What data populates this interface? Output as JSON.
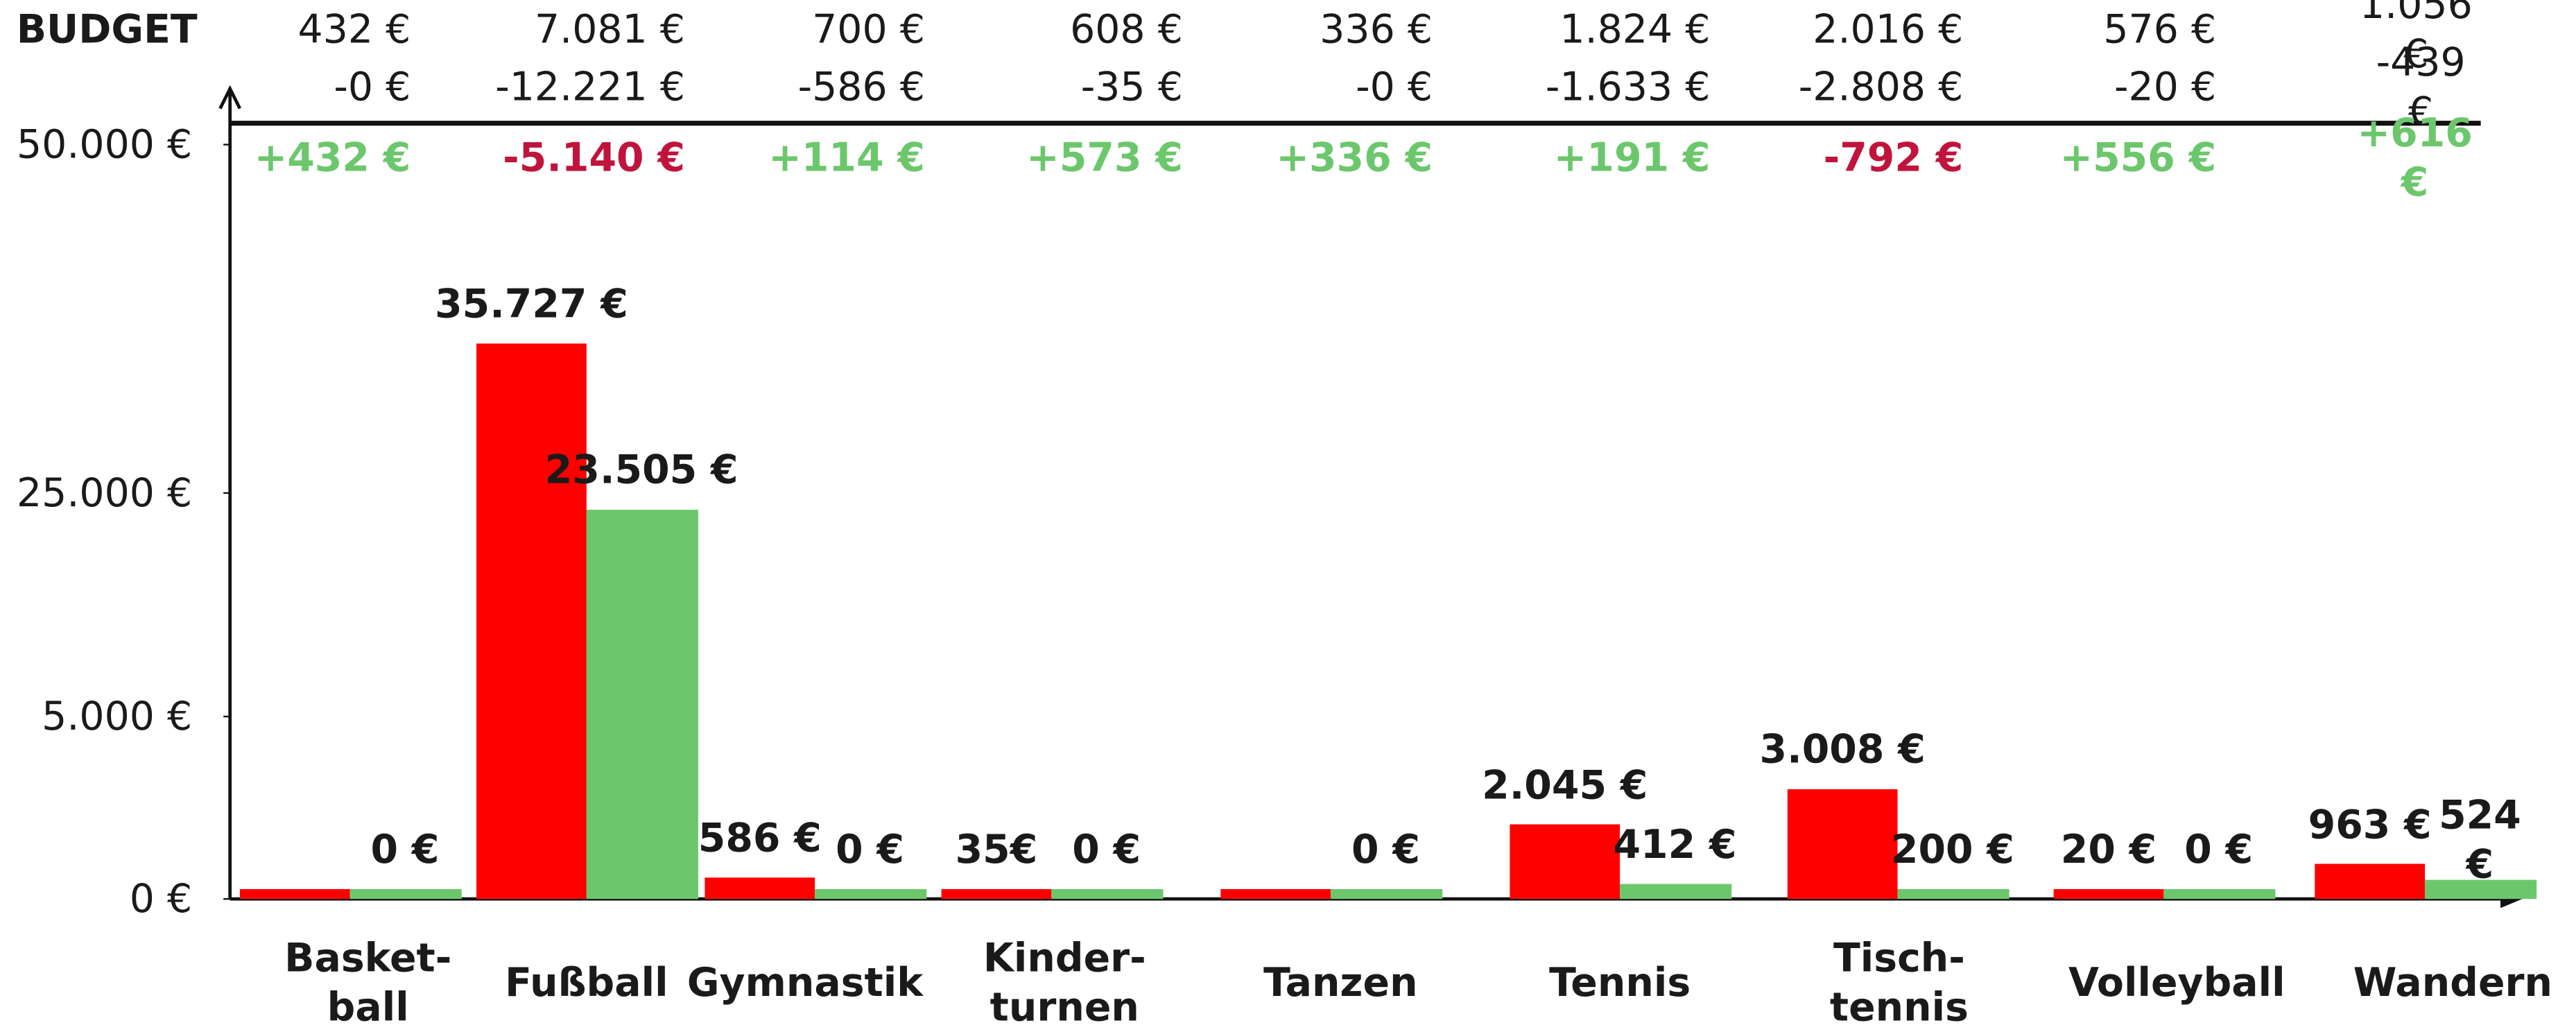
{
  "chart_data": {
    "type": "bar",
    "categories": [
      "Basket-\nball",
      "Fußball",
      "Gymnastik",
      "Kinder-\nturnen",
      "Tanzen",
      "Tennis",
      "Tisch-\ntennis",
      "Volleyball",
      "Wandern"
    ],
    "series": [
      {
        "color": "#ff0000",
        "values": [
          0,
          35727,
          586,
          35,
          0,
          2045,
          3008,
          20,
          963
        ],
        "value_labels": [
          null,
          "35.727 €",
          "586 €",
          "35€",
          null,
          "2.045 €",
          "3.008 €",
          "20 €",
          "963 €"
        ]
      },
      {
        "color": "#6cc76c",
        "values": [
          0,
          23505,
          0,
          0,
          0,
          412,
          200,
          0,
          524
        ],
        "value_labels": [
          "0 €",
          "23.505 €",
          "0 €",
          "0 €",
          "0 €",
          "412 €",
          "200 €",
          "0 €",
          "524 €"
        ]
      }
    ],
    "ylim": [
      0,
      50000
    ],
    "yticks": [
      {
        "value": 0,
        "label": "0 €"
      },
      {
        "value": 5000,
        "label": "5.000 €"
      },
      {
        "value": 25000,
        "label": "25.000 €"
      },
      {
        "value": 50000,
        "label": "50.000 €"
      }
    ],
    "budget": {
      "title": "BUDGET",
      "budget": [
        "432 €",
        "7.081 €",
        "700 €",
        "608 €",
        "336 €",
        "1.824 €",
        "2.016 €",
        "576 €",
        "1.056 €"
      ],
      "spent": [
        "-0 €",
        "-12.221 €",
        "-586 €",
        "-35 €",
        "-0 €",
        "-1.633 €",
        "-2.808 €",
        "-20 €",
        "-439 €"
      ],
      "balance": [
        {
          "label": "+432 €",
          "color": "#6cc76c"
        },
        {
          "label": "-5.140 €",
          "color": "#c0143c"
        },
        {
          "label": "+114 €",
          "color": "#6cc76c"
        },
        {
          "label": "+573 €",
          "color": "#6cc76c"
        },
        {
          "label": "+336 €",
          "color": "#6cc76c"
        },
        {
          "label": "+191 €",
          "color": "#6cc76c"
        },
        {
          "label": "-792 €",
          "color": "#c0143c"
        },
        {
          "label": "+556 €",
          "color": "#6cc76c"
        },
        {
          "label": "+616 €",
          "color": "#6cc76c"
        }
      ]
    }
  }
}
